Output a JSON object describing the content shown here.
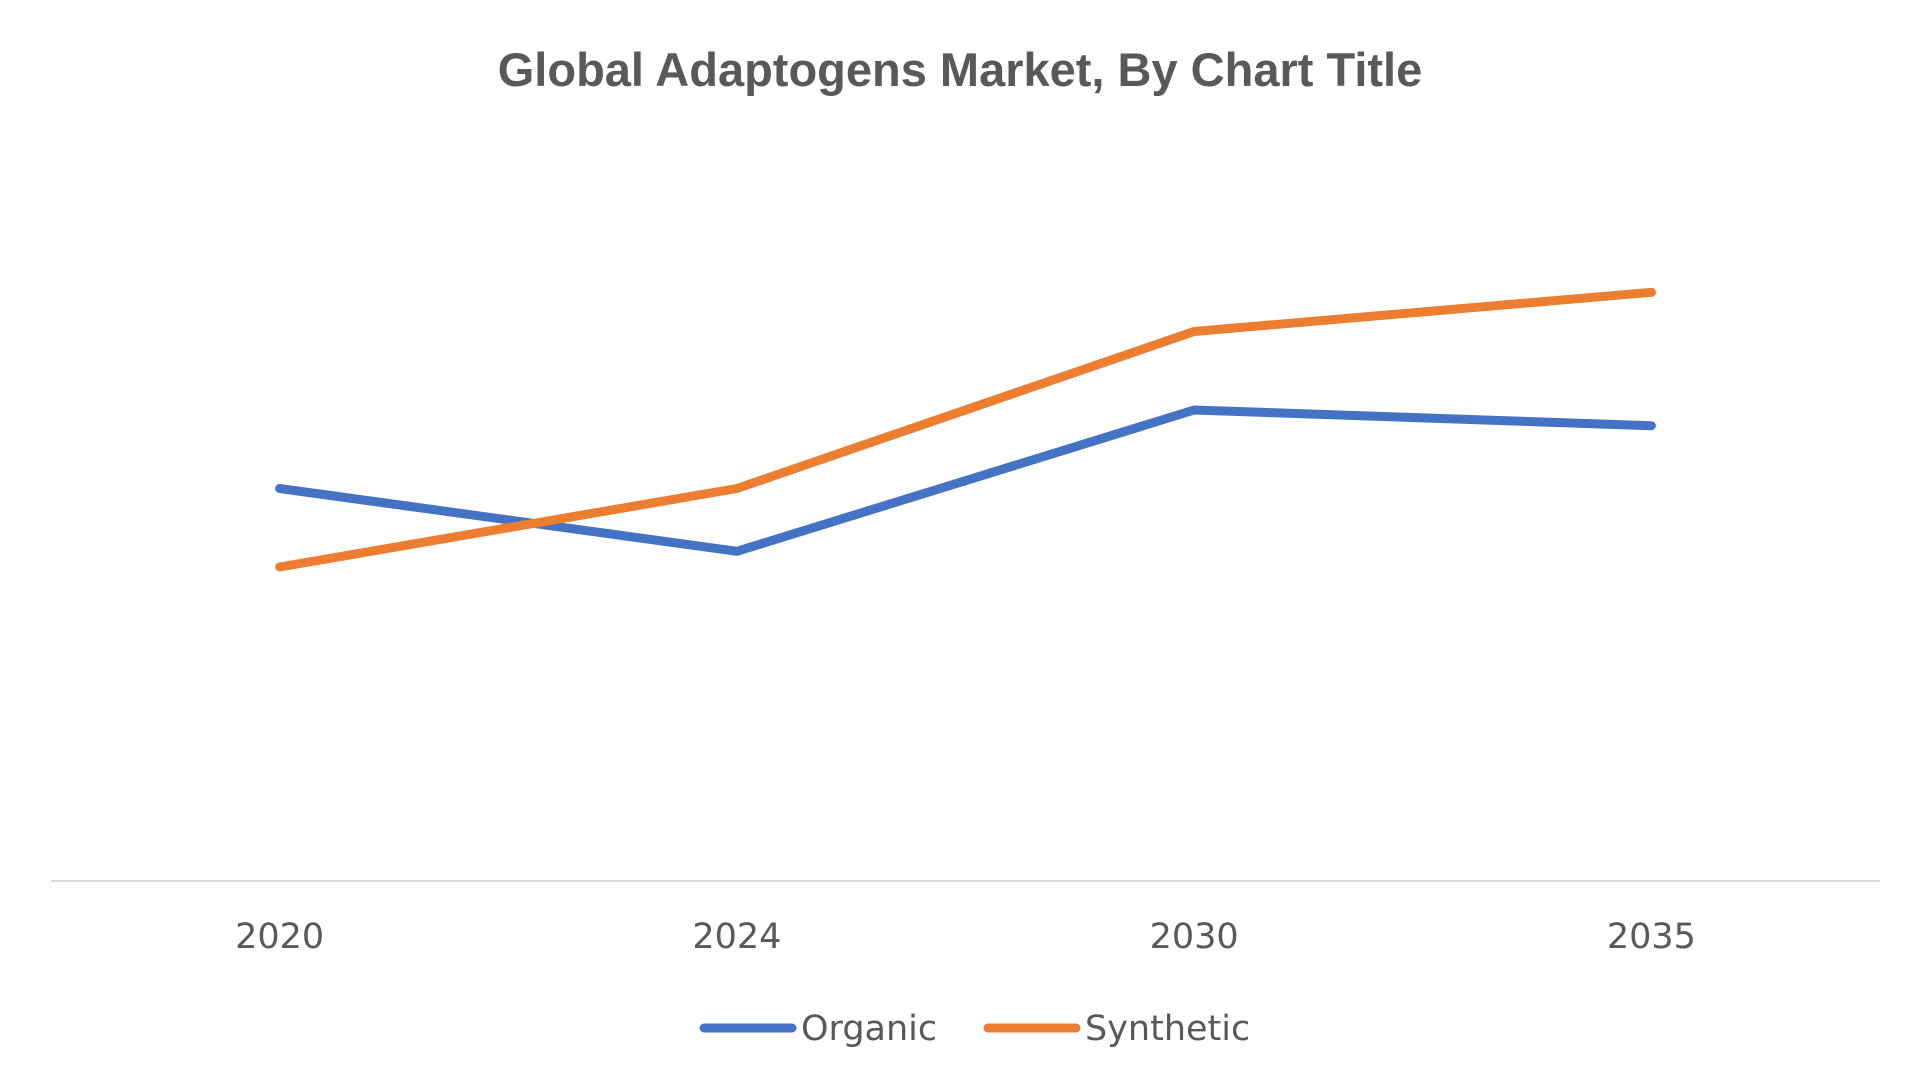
{
  "chart_data": {
    "type": "line",
    "title": "Global Adaptogens Market, By Chart Title",
    "xlabel": "",
    "ylabel": "",
    "categories": [
      "2020",
      "2024",
      "2030",
      "2035"
    ],
    "series": [
      {
        "name": "Organic",
        "color": "#4472C4",
        "values": [
          5.0,
          4.2,
          6.0,
          5.8
        ]
      },
      {
        "name": "Synthetic",
        "color": "#ED7D31",
        "values": [
          4.0,
          5.0,
          7.0,
          7.5
        ]
      }
    ],
    "ylim": [
      0,
      10
    ],
    "grid": false,
    "y_axis_visible": false,
    "legend_position": "bottom"
  }
}
